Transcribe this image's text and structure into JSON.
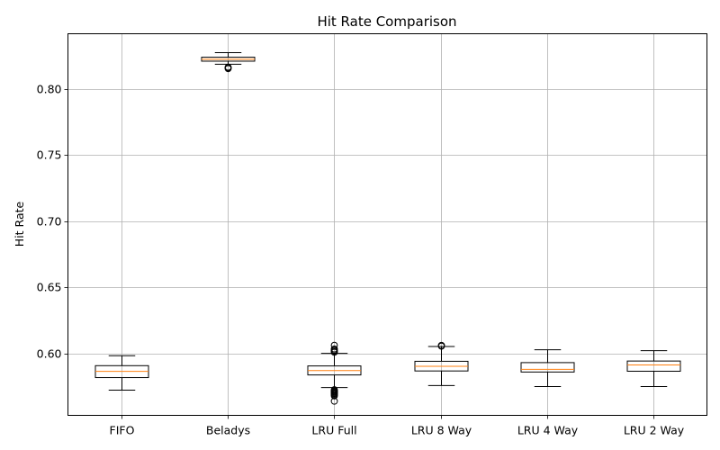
{
  "chart_data": {
    "type": "box",
    "title": "Hit Rate Comparison",
    "xlabel": "",
    "ylabel": "Hit Rate",
    "ylim": [
      0.5535,
      0.8415
    ],
    "yticks": [
      0.6,
      0.65,
      0.7,
      0.75,
      0.8
    ],
    "ytick_labels": [
      "0.60",
      "0.65",
      "0.70",
      "0.75",
      "0.80"
    ],
    "grid": true,
    "median_color": "#ff7f0e",
    "box_color": "#000000",
    "grid_color": "#b0b0b0",
    "categories": [
      "FIFO",
      "Beladys",
      "LRU Full",
      "LRU 8 Way",
      "LRU 4 Way",
      "LRU 2 Way"
    ],
    "boxes": [
      {
        "label": "FIFO",
        "whisker_low": 0.5725,
        "q1": 0.582,
        "median": 0.5867,
        "q3": 0.591,
        "whisker_high": 0.5985,
        "outliers": []
      },
      {
        "label": "Beladys",
        "whisker_low": 0.8185,
        "q1": 0.8208,
        "median": 0.8222,
        "q3": 0.8238,
        "whisker_high": 0.8272,
        "outliers": [
          0.8152,
          0.8158,
          0.8163
        ]
      },
      {
        "label": "LRU Full",
        "whisker_low": 0.5745,
        "q1": 0.584,
        "median": 0.5873,
        "q3": 0.5908,
        "whisker_high": 0.6003,
        "outliers": [
          0.6011,
          0.6019,
          0.6027,
          0.6036,
          0.6064,
          0.5728,
          0.5722,
          0.5716,
          0.571,
          0.5703,
          0.5697,
          0.569,
          0.5682,
          0.5642
        ]
      },
      {
        "label": "LRU 8 Way",
        "whisker_low": 0.576,
        "q1": 0.587,
        "median": 0.5905,
        "q3": 0.5943,
        "whisker_high": 0.6055,
        "outliers": [
          0.6057,
          0.6063
        ]
      },
      {
        "label": "LRU 4 Way",
        "whisker_low": 0.5752,
        "q1": 0.5862,
        "median": 0.5882,
        "q3": 0.5933,
        "whisker_high": 0.603,
        "outliers": []
      },
      {
        "label": "LRU 2 Way",
        "whisker_low": 0.5752,
        "q1": 0.5868,
        "median": 0.5915,
        "q3": 0.5945,
        "whisker_high": 0.6023,
        "outliers": []
      }
    ]
  }
}
